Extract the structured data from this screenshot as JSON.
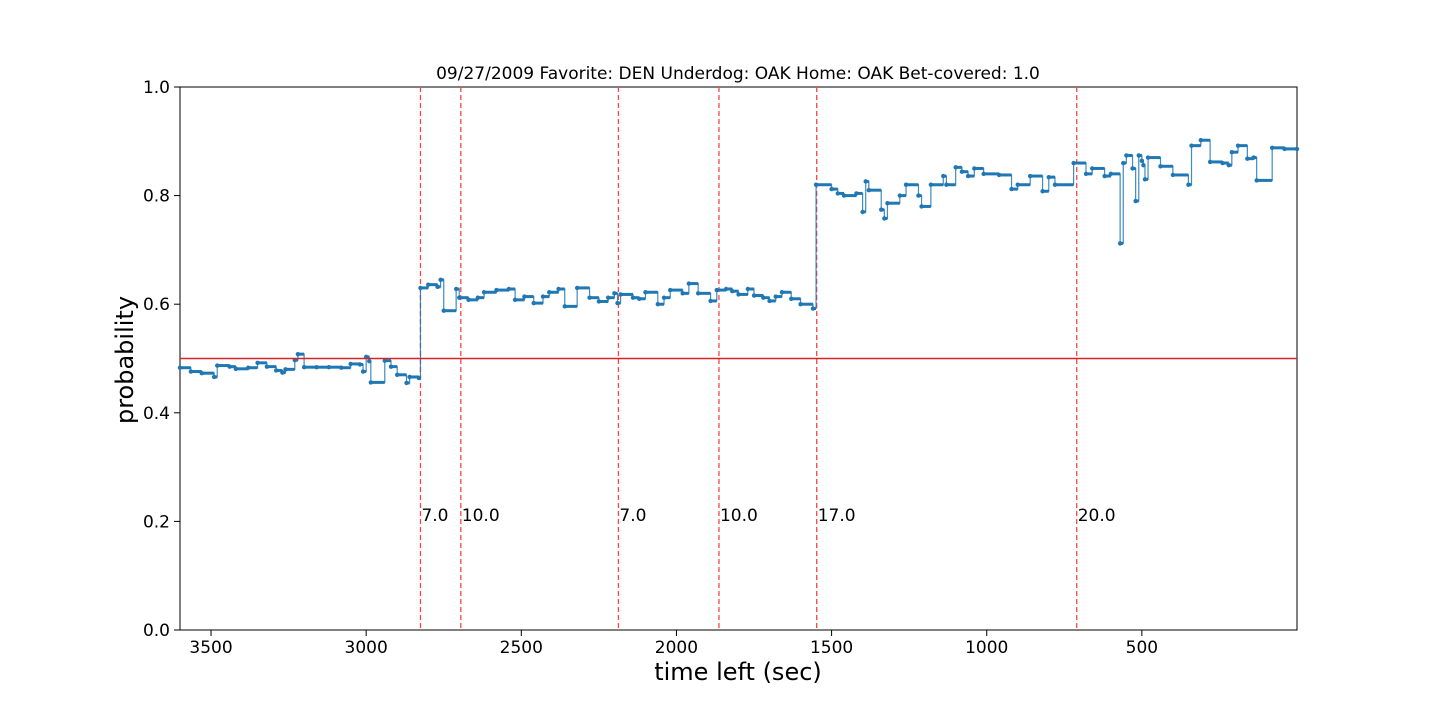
{
  "chart_data": {
    "type": "line",
    "title": "09/27/2009 Favorite: DEN Underdog: OAK Home: OAK Bet-covered: 1.0",
    "xlabel": "time left (sec)",
    "ylabel": "probability",
    "xlim": [
      3600,
      0
    ],
    "ylim": [
      0.0,
      1.0
    ],
    "x_ticks": [
      3500,
      3000,
      2500,
      2000,
      1500,
      1000,
      500
    ],
    "y_ticks": [
      0.0,
      0.2,
      0.4,
      0.6,
      0.8,
      1.0
    ],
    "x_tick_labels": [
      "3500",
      "3000",
      "2500",
      "2000",
      "1500",
      "1000",
      "500"
    ],
    "y_tick_labels": [
      "0.0",
      "0.2",
      "0.4",
      "0.6",
      "0.8",
      "1.0"
    ],
    "grid": false,
    "series": [
      {
        "color": "#1f77b4",
        "step": true,
        "points": [
          [
            3600,
            0.483
          ],
          [
            3565,
            0.476
          ],
          [
            3530,
            0.473
          ],
          [
            3490,
            0.466
          ],
          [
            3480,
            0.487
          ],
          [
            3440,
            0.485
          ],
          [
            3420,
            0.481
          ],
          [
            3380,
            0.483
          ],
          [
            3350,
            0.492
          ],
          [
            3320,
            0.485
          ],
          [
            3290,
            0.478
          ],
          [
            3270,
            0.474
          ],
          [
            3260,
            0.48
          ],
          [
            3230,
            0.497
          ],
          [
            3220,
            0.508
          ],
          [
            3200,
            0.484
          ],
          [
            3160,
            0.484
          ],
          [
            3120,
            0.484
          ],
          [
            3080,
            0.483
          ],
          [
            3050,
            0.49
          ],
          [
            3020,
            0.489
          ],
          [
            3010,
            0.476
          ],
          [
            3000,
            0.503
          ],
          [
            2990,
            0.495
          ],
          [
            2985,
            0.456
          ],
          [
            2940,
            0.496
          ],
          [
            2920,
            0.485
          ],
          [
            2900,
            0.47
          ],
          [
            2870,
            0.455
          ],
          [
            2860,
            0.466
          ],
          [
            2830,
            0.464
          ],
          [
            2825,
            0.63
          ],
          [
            2800,
            0.636
          ],
          [
            2770,
            0.632
          ],
          [
            2760,
            0.645
          ],
          [
            2750,
            0.588
          ],
          [
            2710,
            0.628
          ],
          [
            2700,
            0.612
          ],
          [
            2670,
            0.608
          ],
          [
            2640,
            0.612
          ],
          [
            2620,
            0.622
          ],
          [
            2580,
            0.626
          ],
          [
            2540,
            0.628
          ],
          [
            2520,
            0.608
          ],
          [
            2490,
            0.614
          ],
          [
            2460,
            0.602
          ],
          [
            2430,
            0.614
          ],
          [
            2410,
            0.622
          ],
          [
            2380,
            0.628
          ],
          [
            2360,
            0.596
          ],
          [
            2320,
            0.63
          ],
          [
            2280,
            0.612
          ],
          [
            2250,
            0.605
          ],
          [
            2220,
            0.612
          ],
          [
            2200,
            0.62
          ],
          [
            2190,
            0.602
          ],
          [
            2180,
            0.618
          ],
          [
            2140,
            0.612
          ],
          [
            2120,
            0.61
          ],
          [
            2100,
            0.622
          ],
          [
            2060,
            0.6
          ],
          [
            2040,
            0.612
          ],
          [
            2020,
            0.626
          ],
          [
            1980,
            0.62
          ],
          [
            1960,
            0.638
          ],
          [
            1930,
            0.62
          ],
          [
            1890,
            0.606
          ],
          [
            1870,
            0.626
          ],
          [
            1840,
            0.628
          ],
          [
            1820,
            0.624
          ],
          [
            1800,
            0.618
          ],
          [
            1770,
            0.628
          ],
          [
            1750,
            0.616
          ],
          [
            1720,
            0.612
          ],
          [
            1700,
            0.606
          ],
          [
            1680,
            0.614
          ],
          [
            1660,
            0.622
          ],
          [
            1630,
            0.61
          ],
          [
            1600,
            0.6
          ],
          [
            1560,
            0.592
          ],
          [
            1550,
            0.82
          ],
          [
            1500,
            0.812
          ],
          [
            1480,
            0.804
          ],
          [
            1460,
            0.8
          ],
          [
            1420,
            0.804
          ],
          [
            1400,
            0.77
          ],
          [
            1390,
            0.826
          ],
          [
            1380,
            0.81
          ],
          [
            1340,
            0.774
          ],
          [
            1330,
            0.758
          ],
          [
            1320,
            0.786
          ],
          [
            1280,
            0.8
          ],
          [
            1260,
            0.82
          ],
          [
            1220,
            0.8
          ],
          [
            1210,
            0.78
          ],
          [
            1180,
            0.82
          ],
          [
            1140,
            0.836
          ],
          [
            1130,
            0.82
          ],
          [
            1100,
            0.852
          ],
          [
            1080,
            0.844
          ],
          [
            1060,
            0.836
          ],
          [
            1040,
            0.85
          ],
          [
            1010,
            0.84
          ],
          [
            960,
            0.838
          ],
          [
            920,
            0.812
          ],
          [
            900,
            0.82
          ],
          [
            860,
            0.836
          ],
          [
            820,
            0.808
          ],
          [
            800,
            0.834
          ],
          [
            780,
            0.82
          ],
          [
            720,
            0.86
          ],
          [
            680,
            0.84
          ],
          [
            660,
            0.85
          ],
          [
            620,
            0.836
          ],
          [
            600,
            0.84
          ],
          [
            570,
            0.712
          ],
          [
            560,
            0.86
          ],
          [
            550,
            0.874
          ],
          [
            530,
            0.85
          ],
          [
            520,
            0.79
          ],
          [
            510,
            0.874
          ],
          [
            500,
            0.864
          ],
          [
            495,
            0.856
          ],
          [
            490,
            0.83
          ],
          [
            480,
            0.87
          ],
          [
            440,
            0.854
          ],
          [
            400,
            0.838
          ],
          [
            350,
            0.82
          ],
          [
            340,
            0.892
          ],
          [
            310,
            0.902
          ],
          [
            280,
            0.862
          ],
          [
            240,
            0.86
          ],
          [
            220,
            0.856
          ],
          [
            210,
            0.88
          ],
          [
            190,
            0.892
          ],
          [
            160,
            0.868
          ],
          [
            140,
            0.87
          ],
          [
            130,
            0.828
          ],
          [
            80,
            0.888
          ],
          [
            40,
            0.886
          ],
          [
            0,
            0.886
          ]
        ]
      }
    ],
    "reference_line": {
      "y": 0.5,
      "color": "#d62728"
    },
    "score_markers": {
      "color": "#ff4444",
      "items": [
        {
          "x": 2825,
          "label": "7.0"
        },
        {
          "x": 2695,
          "label": "10.0"
        },
        {
          "x": 2187,
          "label": "7.0"
        },
        {
          "x": 1863,
          "label": "10.0"
        },
        {
          "x": 1548,
          "label": "17.0"
        },
        {
          "x": 710,
          "label": "20.0"
        }
      ]
    }
  }
}
